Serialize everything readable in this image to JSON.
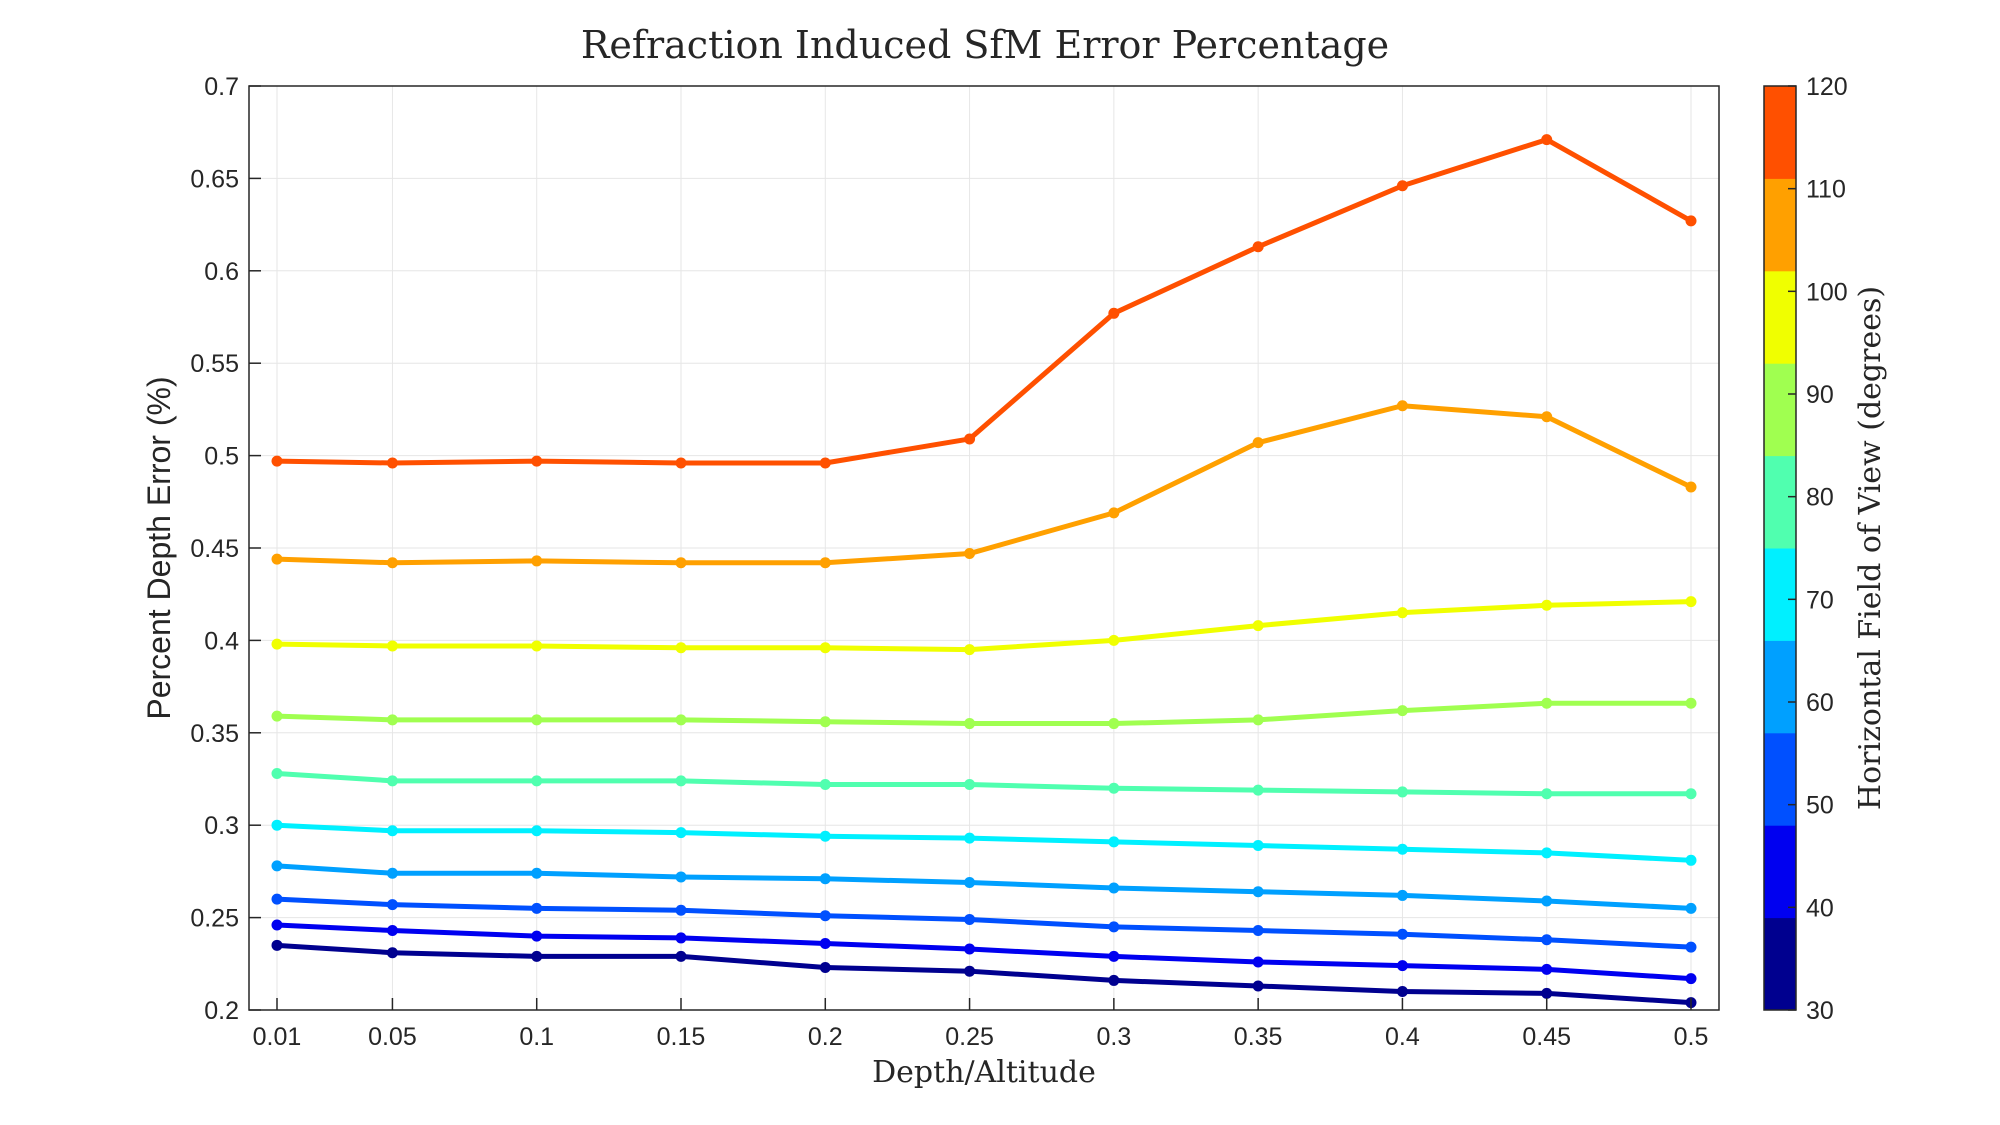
{
  "chart_data": {
    "type": "line",
    "title": "Refraction Induced SfM Error Percentage",
    "xlabel": "Depth/Altitude",
    "ylabel": "Percent Depth Error (%)",
    "x": [
      0.01,
      0.05,
      0.1,
      0.15,
      0.2,
      0.25,
      0.3,
      0.35,
      0.4,
      0.45,
      0.5
    ],
    "x_tick_labels": [
      "0.01",
      "0.05",
      "0.1",
      "0.15",
      "0.2",
      "0.25",
      "0.3",
      "0.35",
      "0.4",
      "0.45",
      "0.5"
    ],
    "ylim": [
      0.2,
      0.7
    ],
    "y_ticks": [
      0.2,
      0.25,
      0.3,
      0.35,
      0.4,
      0.45,
      0.5,
      0.55,
      0.6,
      0.65,
      0.7
    ],
    "y_tick_labels": [
      "0.2",
      "0.25",
      "0.3",
      "0.35",
      "0.4",
      "0.45",
      "0.5",
      "0.55",
      "0.6",
      "0.65",
      "0.7"
    ],
    "grid": true,
    "series": [
      {
        "fov": 30,
        "color": "#00008f",
        "values": [
          0.235,
          0.231,
          0.229,
          0.229,
          0.223,
          0.221,
          0.216,
          0.213,
          0.21,
          0.209,
          0.204
        ]
      },
      {
        "fov": 40,
        "color": "#0000f0",
        "values": [
          0.246,
          0.243,
          0.24,
          0.239,
          0.236,
          0.233,
          0.229,
          0.226,
          0.224,
          0.222,
          0.217
        ]
      },
      {
        "fov": 50,
        "color": "#0050ff",
        "values": [
          0.26,
          0.257,
          0.255,
          0.254,
          0.251,
          0.249,
          0.245,
          0.243,
          0.241,
          0.238,
          0.234
        ]
      },
      {
        "fov": 60,
        "color": "#00a0ff",
        "values": [
          0.278,
          0.274,
          0.274,
          0.272,
          0.271,
          0.269,
          0.266,
          0.264,
          0.262,
          0.259,
          0.255
        ]
      },
      {
        "fov": 70,
        "color": "#00f0ff",
        "values": [
          0.3,
          0.297,
          0.297,
          0.296,
          0.294,
          0.293,
          0.291,
          0.289,
          0.287,
          0.285,
          0.281
        ]
      },
      {
        "fov": 80,
        "color": "#50ffaf",
        "values": [
          0.328,
          0.324,
          0.324,
          0.324,
          0.322,
          0.322,
          0.32,
          0.319,
          0.318,
          0.317,
          0.317
        ]
      },
      {
        "fov": 90,
        "color": "#a0ff50",
        "values": [
          0.359,
          0.357,
          0.357,
          0.357,
          0.356,
          0.355,
          0.355,
          0.357,
          0.362,
          0.366,
          0.366
        ]
      },
      {
        "fov": 100,
        "color": "#f0ff00",
        "values": [
          0.398,
          0.397,
          0.397,
          0.396,
          0.396,
          0.395,
          0.4,
          0.408,
          0.415,
          0.419,
          0.421
        ]
      },
      {
        "fov": 110,
        "color": "#ffa000",
        "values": [
          0.444,
          0.442,
          0.443,
          0.442,
          0.442,
          0.447,
          0.469,
          0.507,
          0.527,
          0.521,
          0.483
        ]
      },
      {
        "fov": 120,
        "color": "#ff5000",
        "values": [
          0.497,
          0.496,
          0.497,
          0.496,
          0.496,
          0.509,
          0.577,
          0.613,
          0.646,
          0.671,
          0.627
        ]
      }
    ],
    "colorbar": {
      "label": "Horizontal Field of View (degrees)",
      "range": [
        30,
        120
      ],
      "ticks": [
        30,
        40,
        50,
        60,
        70,
        80,
        90,
        100,
        110,
        120
      ],
      "tick_labels": [
        "30",
        "40",
        "50",
        "60",
        "70",
        "80",
        "90",
        "100",
        "110",
        "120"
      ],
      "colors": [
        "#00008f",
        "#0000f0",
        "#0050ff",
        "#00a0ff",
        "#00f0ff",
        "#50ffaf",
        "#a0ff50",
        "#f0ff00",
        "#ffa000",
        "#ff5000"
      ]
    }
  }
}
